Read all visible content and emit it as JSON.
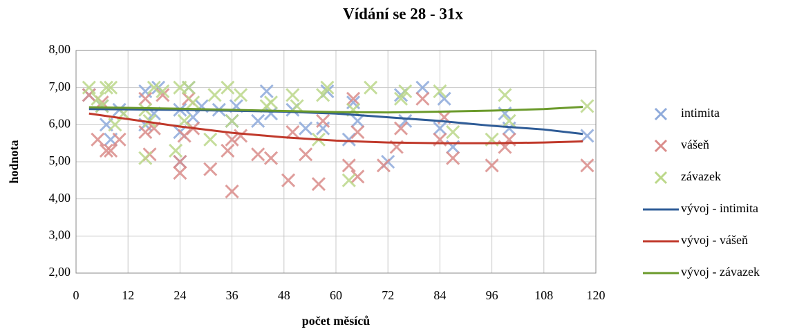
{
  "chart_data": {
    "type": "scatter",
    "title": "Vídání se 28 - 31x",
    "x_label": "počet měsíců",
    "y_label": "hodnota",
    "xlim": [
      0,
      120
    ],
    "xticks": [
      0,
      12,
      24,
      36,
      48,
      60,
      72,
      84,
      96,
      108,
      120
    ],
    "ylim": [
      2,
      8
    ],
    "yticks": [
      {
        "value": 2,
        "label": "2,00"
      },
      {
        "value": 3,
        "label": "3,00"
      },
      {
        "value": 4,
        "label": "4,00"
      },
      {
        "value": 5,
        "label": "5,00"
      },
      {
        "value": 6,
        "label": "6,00"
      },
      {
        "value": 7,
        "label": "7,00"
      },
      {
        "value": 8,
        "label": "8,00"
      }
    ],
    "grid": true,
    "legend": "right",
    "series": [
      {
        "name": "intimita",
        "type": "scatter",
        "color": "#8eaadb",
        "x": [
          3,
          6,
          7,
          8,
          10,
          16,
          16,
          18,
          19,
          24,
          24,
          24,
          26,
          27,
          29,
          33,
          36,
          37,
          42,
          44,
          45,
          50,
          53,
          57,
          58,
          63,
          64,
          65,
          72,
          75,
          76,
          80,
          84,
          85,
          87,
          99,
          100,
          118
        ],
        "values": [
          6.8,
          6.5,
          6.0,
          5.6,
          6.4,
          6.9,
          6.0,
          6.3,
          7.0,
          5.8,
          5.0,
          6.4,
          7.0,
          6.2,
          6.5,
          6.4,
          6.1,
          6.5,
          6.1,
          6.9,
          6.3,
          6.4,
          5.9,
          5.9,
          6.9,
          5.6,
          6.6,
          6.1,
          5.0,
          6.8,
          6.1,
          7.0,
          5.9,
          6.7,
          5.4,
          6.3,
          5.9,
          5.7
        ]
      },
      {
        "name": "vášeň",
        "type": "scatter",
        "color": "#da8c8a",
        "x": [
          3,
          5,
          6,
          7,
          8,
          10,
          16,
          16,
          17,
          18,
          20,
          24,
          24,
          25,
          26,
          27,
          31,
          35,
          36,
          36,
          38,
          42,
          45,
          49,
          50,
          53,
          56,
          57,
          63,
          64,
          65,
          65,
          71,
          74,
          75,
          80,
          84,
          85,
          87,
          96,
          99,
          100,
          118
        ],
        "values": [
          6.8,
          5.6,
          6.6,
          5.3,
          5.3,
          5.6,
          6.7,
          5.8,
          5.2,
          5.9,
          6.8,
          4.7,
          5.0,
          5.7,
          6.7,
          5.9,
          4.8,
          5.3,
          4.2,
          5.6,
          5.7,
          5.2,
          5.1,
          4.5,
          5.8,
          5.2,
          4.4,
          6.1,
          4.9,
          6.7,
          4.6,
          5.8,
          4.9,
          5.4,
          5.9,
          6.7,
          5.6,
          6.2,
          5.1,
          4.9,
          5.4,
          5.6,
          4.9
        ]
      },
      {
        "name": "závazek",
        "type": "scatter",
        "color": "#bcd88a",
        "x": [
          3,
          5,
          6,
          7,
          8,
          9,
          11,
          16,
          16,
          17,
          18,
          20,
          23,
          24,
          25,
          26,
          27,
          31,
          32,
          35,
          36,
          38,
          44,
          45,
          50,
          51,
          56,
          57,
          58,
          63,
          64,
          68,
          75,
          76,
          84,
          87,
          96,
          99,
          100,
          118
        ],
        "values": [
          7.0,
          6.7,
          6.5,
          7.0,
          7.0,
          6.0,
          6.3,
          5.1,
          6.4,
          6.1,
          7.0,
          6.9,
          5.3,
          7.0,
          6.1,
          7.0,
          6.6,
          5.6,
          6.8,
          7.0,
          6.1,
          6.8,
          6.5,
          6.6,
          6.8,
          6.5,
          5.6,
          6.8,
          7.0,
          4.5,
          6.4,
          7.0,
          6.7,
          6.9,
          6.9,
          5.8,
          5.6,
          6.8,
          6.1,
          6.5
        ]
      },
      {
        "name": "vývoj - intimita",
        "type": "line",
        "color": "#2f5c97",
        "x": [
          3,
          24,
          48,
          60,
          72,
          84,
          96,
          108,
          117
        ],
        "values": [
          6.42,
          6.4,
          6.35,
          6.3,
          6.2,
          6.1,
          5.97,
          5.87,
          5.75
        ]
      },
      {
        "name": "vývoj - vášeň",
        "type": "line",
        "color": "#c0392b",
        "x": [
          3,
          12,
          24,
          36,
          48,
          60,
          72,
          84,
          96,
          108,
          117
        ],
        "values": [
          6.3,
          6.15,
          5.95,
          5.78,
          5.66,
          5.57,
          5.52,
          5.5,
          5.5,
          5.52,
          5.55
        ]
      },
      {
        "name": "vývoj - závazek",
        "type": "line",
        "color": "#6b9a2b",
        "x": [
          3,
          24,
          48,
          60,
          72,
          84,
          96,
          108,
          117
        ],
        "values": [
          6.47,
          6.43,
          6.37,
          6.34,
          6.33,
          6.35,
          6.38,
          6.42,
          6.48
        ]
      }
    ]
  }
}
